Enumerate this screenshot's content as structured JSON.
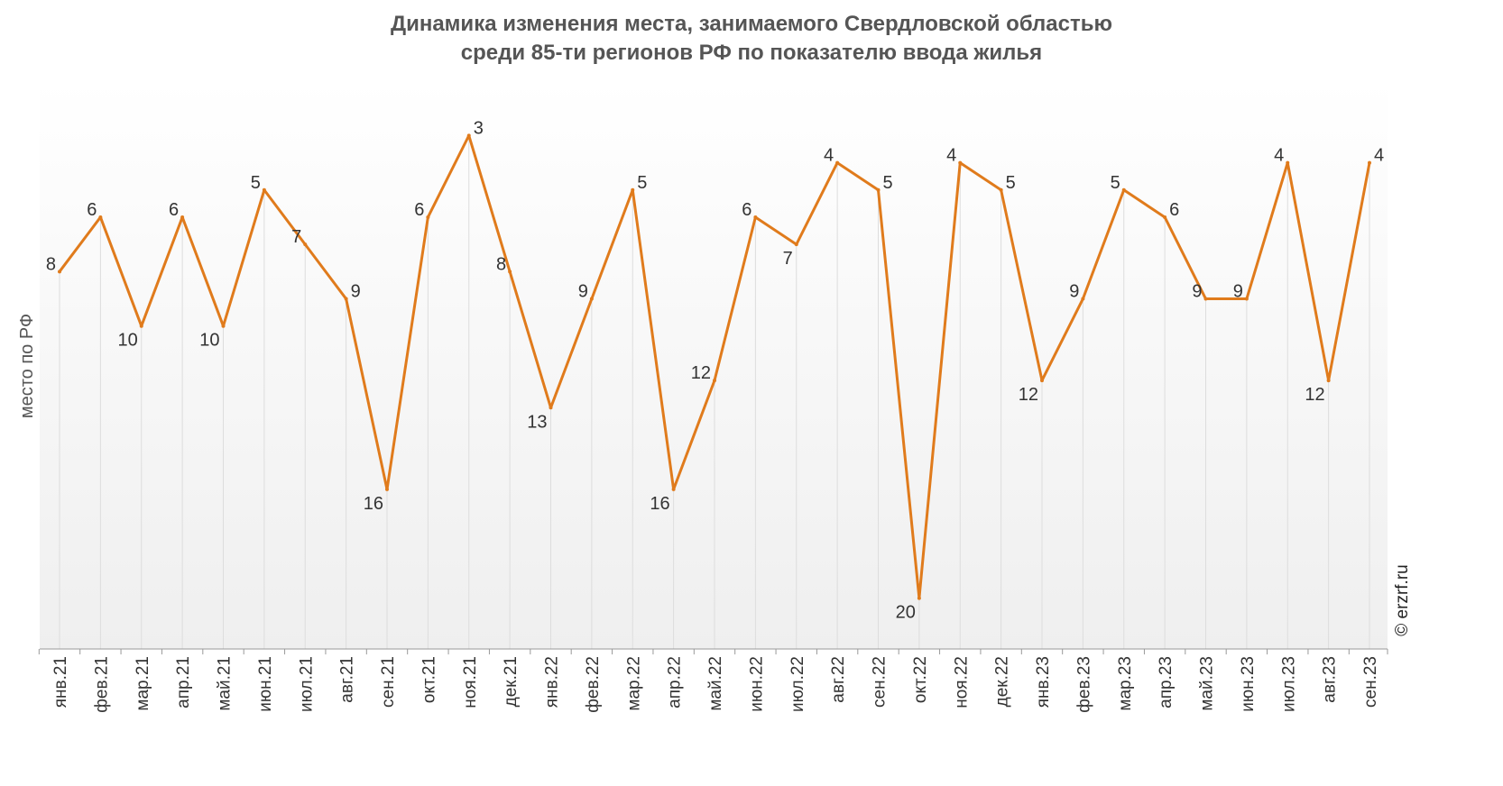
{
  "chart_data": {
    "type": "line",
    "title_line1": "Динамика изменения места, занимаемого Свердловской областью",
    "title_line2": "среди 85-ти регионов РФ по показателю ввода жилья",
    "ylabel": "место по РФ",
    "xlabel": "",
    "y_reversed": true,
    "ylim": [
      1,
      22
    ],
    "grid": "vertical",
    "categories": [
      "янв.21",
      "фев.21",
      "мар.21",
      "апр.21",
      "май.21",
      "июн.21",
      "июл.21",
      "авг.21",
      "сен.21",
      "окт.21",
      "ноя.21",
      "дек.21",
      "янв.22",
      "фев.22",
      "мар.22",
      "апр.22",
      "май.22",
      "июн.22",
      "июл.22",
      "авг.22",
      "сен.22",
      "окт.22",
      "ноя.22",
      "дек.22",
      "янв.23",
      "фев.23",
      "мар.23",
      "апр.23",
      "май.23",
      "июн.23",
      "июл.23",
      "авг.23",
      "сен.23"
    ],
    "values": [
      8,
      6,
      10,
      6,
      10,
      5,
      7,
      9,
      16,
      6,
      3,
      8,
      13,
      9,
      5,
      16,
      12,
      6,
      7,
      4,
      5,
      20,
      4,
      5,
      12,
      9,
      5,
      6,
      9,
      9,
      4,
      12,
      4
    ],
    "label_side": [
      "left",
      "left",
      "left",
      "left",
      "left",
      "left",
      "left",
      "right",
      "left",
      "left",
      "right",
      "left",
      "left",
      "left",
      "right",
      "left",
      "left",
      "left",
      "left",
      "left",
      "right",
      "left",
      "left",
      "right",
      "left",
      "left",
      "left",
      "right",
      "left",
      "left",
      "left",
      "left",
      "right"
    ],
    "line_color": "#e07b1c"
  },
  "watermark": "© erzrf.ru"
}
